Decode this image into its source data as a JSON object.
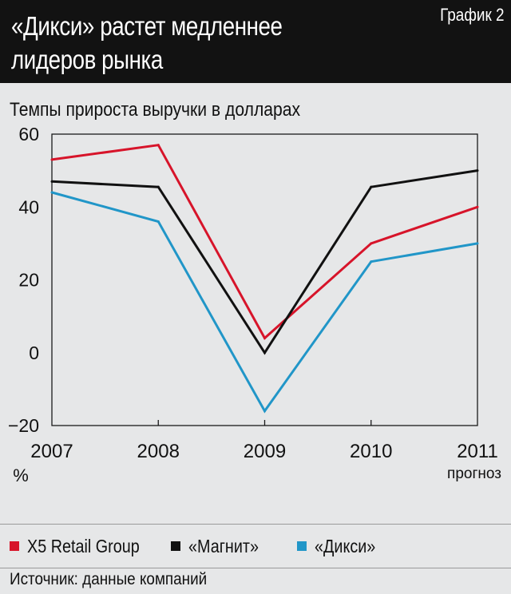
{
  "header": {
    "title_line1": "«Дикси» растет медленнее",
    "title_line2": "лидеров рынка",
    "graph_label": "График 2"
  },
  "chart_data": {
    "type": "line",
    "title": "Темпы прироста выручки в долларах",
    "unit_label": "%",
    "categories": [
      "2007",
      "2008",
      "2009",
      "2010",
      "2011"
    ],
    "category_notes": [
      "",
      "",
      "",
      "",
      "прогноз"
    ],
    "ylim": [
      -20,
      60
    ],
    "yticks": [
      60,
      40,
      20,
      0,
      -20
    ],
    "grid": false,
    "series": [
      {
        "name": "X5 Retail Group",
        "color": "#d7142a",
        "values": [
          53,
          57,
          4,
          30,
          40
        ]
      },
      {
        "name": "«Магнит»",
        "color": "#111111",
        "values": [
          47,
          45.5,
          0,
          45.5,
          50
        ]
      },
      {
        "name": "«Дикси»",
        "color": "#2196c8",
        "values": [
          44,
          36,
          -16,
          25,
          30
        ]
      }
    ]
  },
  "source": {
    "text": "Источник: данные компаний"
  }
}
